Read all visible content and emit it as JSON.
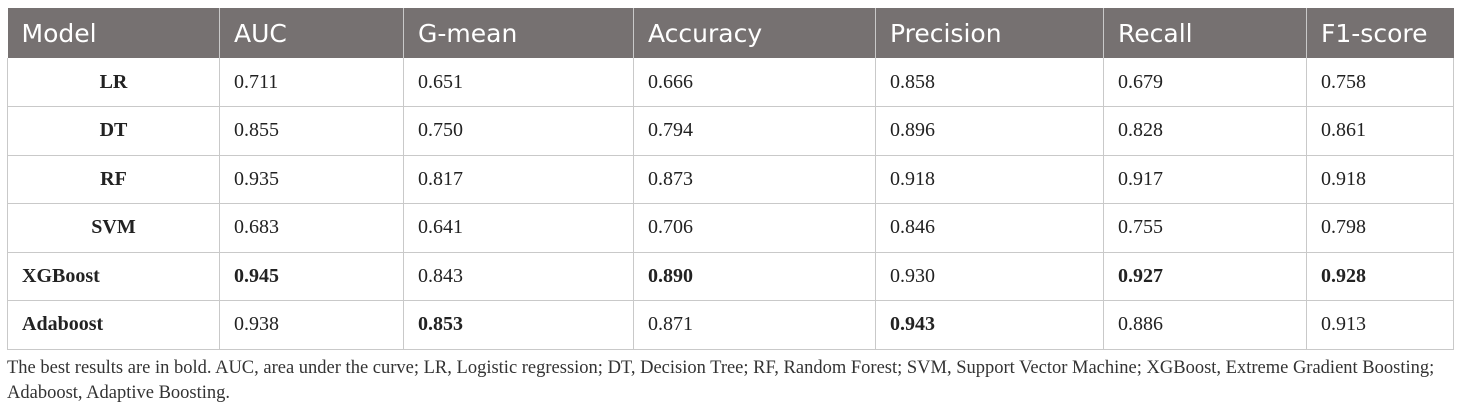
{
  "table": {
    "headers": [
      "Model",
      "AUC",
      "G-mean",
      "Accuracy",
      "Precision",
      "Recall",
      "F1-score"
    ],
    "rows": [
      {
        "model": "LR",
        "values": [
          "0.711",
          "0.651",
          "0.666",
          "0.858",
          "0.679",
          "0.758"
        ],
        "bold": [
          false,
          false,
          false,
          false,
          false,
          false
        ]
      },
      {
        "model": "DT",
        "values": [
          "0.855",
          "0.750",
          "0.794",
          "0.896",
          "0.828",
          "0.861"
        ],
        "bold": [
          false,
          false,
          false,
          false,
          false,
          false
        ]
      },
      {
        "model": "RF",
        "values": [
          "0.935",
          "0.817",
          "0.873",
          "0.918",
          "0.917",
          "0.918"
        ],
        "bold": [
          false,
          false,
          false,
          false,
          false,
          false
        ]
      },
      {
        "model": "SVM",
        "values": [
          "0.683",
          "0.641",
          "0.706",
          "0.846",
          "0.755",
          "0.798"
        ],
        "bold": [
          false,
          false,
          false,
          false,
          false,
          false
        ]
      },
      {
        "model": "XGBoost",
        "values": [
          "0.945",
          "0.843",
          "0.890",
          "0.930",
          "0.927",
          "0.928"
        ],
        "bold": [
          true,
          false,
          true,
          false,
          true,
          true
        ]
      },
      {
        "model": "Adaboost",
        "values": [
          "0.938",
          "0.853",
          "0.871",
          "0.943",
          "0.886",
          "0.913"
        ],
        "bold": [
          false,
          true,
          false,
          true,
          false,
          false
        ]
      }
    ]
  },
  "footnote": "The best results are in bold. AUC, area under the curve; LR, Logistic regression; DT, Decision Tree; RF, Random Forest; SVM, Support Vector Machine; XGBoost, Extreme Gradient Boosting; Adaboost, Adaptive Boosting."
}
